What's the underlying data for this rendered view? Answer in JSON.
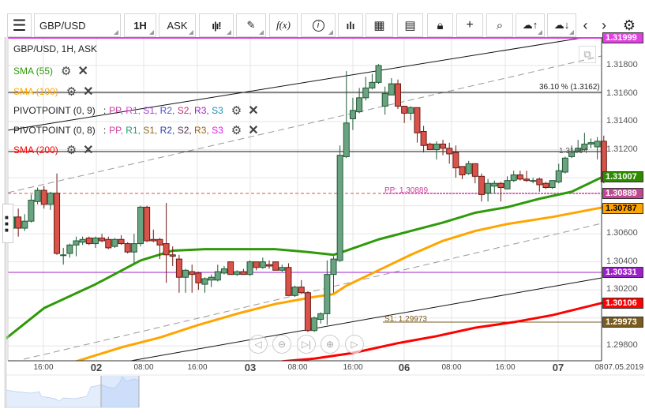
{
  "toolbar": {
    "menu_icon": "hamburger-icon",
    "symbol": "GBP/USD",
    "timeframe": "1H",
    "price_type": "ASK",
    "icons": [
      "candlestick-icon",
      "pen-icon",
      "function-icon",
      "info-icon",
      "bar-chart-icon",
      "calendar-icon",
      "document-icon",
      "lock-icon",
      "crosshair-icon",
      "zoom-search-icon",
      "cloud-upload-icon",
      "cloud-download-icon",
      "chevron-left-icon",
      "chevron-right-icon",
      "gear-icon"
    ],
    "fx_label": "f(x)"
  },
  "legend": {
    "title": "GBP/USD, 1H, ASK",
    "sma55": {
      "label": "SMA (55)",
      "color": "#2e9a0a"
    },
    "sma100": {
      "label": "SMA (100)",
      "color": "#ffa500"
    },
    "sma200": {
      "label": "SMA (200)",
      "color": "#ff0000"
    },
    "pivot1": {
      "label": "PIVOTPOINT (0, 9)",
      "sep": ":",
      "parts": [
        {
          "t": "PP",
          "c": "#c0399a"
        },
        {
          "t": "R1",
          "c": "#e040e0"
        },
        {
          "t": "S1",
          "c": "#a040d0"
        },
        {
          "t": "R2",
          "c": "#5050d0"
        },
        {
          "t": "S2",
          "c": "#c03070"
        },
        {
          "t": "R3",
          "c": "#a020c0"
        },
        {
          "t": "S3",
          "c": "#2090b0"
        }
      ]
    },
    "pivot2": {
      "label": "PIVOTPOINT (0, 8)",
      "sep": ":",
      "parts": [
        {
          "t": "PP",
          "c": "#d040a0"
        },
        {
          "t": "R1",
          "c": "#20a070"
        },
        {
          "t": "S1",
          "c": "#8a6a20"
        },
        {
          "t": "R2",
          "c": "#3040b0"
        },
        {
          "t": "S2",
          "c": "#503050"
        },
        {
          "t": "R3",
          "c": "#a06010"
        },
        {
          "t": "S3",
          "c": "#e020e0"
        }
      ]
    }
  },
  "annotations": {
    "fib": "36.10 % (1.3162)",
    "hline": "1.31094",
    "pp": "PP: 1.30889",
    "s1": "S1: 1.29973"
  },
  "price_labels": [
    {
      "value": "1.31999",
      "color": "#e040e0"
    },
    {
      "value": "1.31007",
      "color": "#2e8b00"
    },
    {
      "value": "1.30889",
      "color": "#c04890"
    },
    {
      "value": "1.30787",
      "color": "#ffa500"
    },
    {
      "value": "1.30331",
      "color": "#9b20c8"
    },
    {
      "value": "1.30106",
      "color": "#ff0000"
    },
    {
      "value": "1.29973",
      "color": "#7a5c20"
    }
  ],
  "nav_buttons": [
    "scroll-left-icon",
    "zoom-out-icon",
    "go-to-end-icon",
    "zoom-in-icon",
    "scroll-right-icon"
  ],
  "chart_data": {
    "type": "candlestick",
    "y_ticks": [
      "1.31800",
      "1.31600",
      "1.31400",
      "1.31200",
      "1.30600",
      "1.30400",
      "1.30200",
      "1.29800"
    ],
    "x_ticks": [
      {
        "t": "16:00",
        "day": false
      },
      {
        "t": "02",
        "day": true
      },
      {
        "t": "08:00",
        "day": false
      },
      {
        "t": "16:00",
        "day": false
      },
      {
        "t": "03",
        "day": true
      },
      {
        "t": "08:00",
        "day": false
      },
      {
        "t": "16:00",
        "day": false
      },
      {
        "t": "06",
        "day": true
      },
      {
        "t": "08:00",
        "day": false
      },
      {
        "t": "16:00",
        "day": false
      },
      {
        "t": "07",
        "day": true
      }
    ],
    "x_last": "08",
    "date": "07.05.2019",
    "ylim": [
      1.2972,
      1.3192
    ],
    "colors": {
      "up": "#6aa37f",
      "down": "#d9534a"
    },
    "ohlc": [
      [
        1.3064,
        1.3074,
        1.3063,
        1.3072
      ],
      [
        1.3072,
        1.3078,
        1.3058,
        1.3064
      ],
      [
        1.3064,
        1.3074,
        1.3062,
        1.3069
      ],
      [
        1.3069,
        1.3088,
        1.3068,
        1.3084
      ],
      [
        1.3083,
        1.3093,
        1.3081,
        1.3091
      ],
      [
        1.3091,
        1.3094,
        1.3078,
        1.3081
      ],
      [
        1.3081,
        1.309,
        1.3077,
        1.3089
      ],
      [
        1.3089,
        1.3103,
        1.3045,
        1.3046
      ],
      [
        1.3045,
        1.305,
        1.3038,
        1.3045
      ],
      [
        1.3046,
        1.3053,
        1.3043,
        1.3052
      ],
      [
        1.3052,
        1.3058,
        1.3044,
        1.3055
      ],
      [
        1.3054,
        1.3058,
        1.3052,
        1.3056
      ],
      [
        1.3057,
        1.3058,
        1.3052,
        1.3053
      ],
      [
        1.3053,
        1.3058,
        1.305,
        1.3057
      ],
      [
        1.3057,
        1.306,
        1.3054,
        1.3055
      ],
      [
        1.3056,
        1.3058,
        1.3049,
        1.305
      ],
      [
        1.3051,
        1.3057,
        1.305,
        1.3056
      ],
      [
        1.3056,
        1.3059,
        1.3052,
        1.3053
      ],
      [
        1.3053,
        1.3054,
        1.3046,
        1.3047
      ],
      [
        1.3047,
        1.306,
        1.3039,
        1.3053
      ],
      [
        1.3053,
        1.308,
        1.3051,
        1.3079
      ],
      [
        1.3079,
        1.308,
        1.3054,
        1.3055
      ],
      [
        1.3056,
        1.3063,
        1.3054,
        1.3055
      ],
      [
        1.3056,
        1.3057,
        1.3042,
        1.3052
      ],
      [
        1.3053,
        1.3082,
        1.3025,
        1.3045
      ],
      [
        1.3045,
        1.3051,
        1.3037,
        1.3044
      ],
      [
        1.3042,
        1.3045,
        1.3018,
        1.3029
      ],
      [
        1.3029,
        1.3035,
        1.3018,
        1.3034
      ],
      [
        1.3033,
        1.3038,
        1.3018,
        1.3031
      ],
      [
        1.3032,
        1.3033,
        1.302,
        1.3025
      ],
      [
        1.3024,
        1.3029,
        1.3018,
        1.3028
      ],
      [
        1.3027,
        1.3031,
        1.3022,
        1.3029
      ],
      [
        1.3027,
        1.3038,
        1.3026,
        1.3033
      ],
      [
        1.3032,
        1.3037,
        1.3031,
        1.3035
      ],
      [
        1.304,
        1.304,
        1.3031,
        1.3031
      ],
      [
        1.3031,
        1.3034,
        1.303,
        1.3033
      ],
      [
        1.3033,
        1.3035,
        1.3031,
        1.3031
      ],
      [
        1.3031,
        1.3041,
        1.303,
        1.304
      ],
      [
        1.304,
        1.304,
        1.3034,
        1.3036
      ],
      [
        1.3036,
        1.3043,
        1.3035,
        1.304
      ],
      [
        1.3038,
        1.3041,
        1.3035,
        1.3037
      ],
      [
        1.304,
        1.304,
        1.3034,
        1.3034
      ],
      [
        1.3034,
        1.3038,
        1.3033,
        1.3036
      ],
      [
        1.3036,
        1.3039,
        1.3016,
        1.3016
      ],
      [
        1.3016,
        1.3023,
        1.3015,
        1.3022
      ],
      [
        1.3022,
        1.3027,
        1.3017,
        1.3018
      ],
      [
        1.3018,
        1.3019,
        1.299,
        1.2991
      ],
      [
        1.2991,
        1.3001,
        1.299,
        1.3
      ],
      [
        1.2999,
        1.3004,
        1.2996,
        1.3003
      ],
      [
        1.3003,
        1.3041,
        1.2995,
        1.3031
      ],
      [
        1.3031,
        1.3044,
        1.3018,
        1.3042
      ],
      [
        1.3041,
        1.3123,
        1.304,
        1.3116
      ],
      [
        1.3115,
        1.3176,
        1.3114,
        1.3139
      ],
      [
        1.3142,
        1.3157,
        1.3134,
        1.3148
      ],
      [
        1.3147,
        1.3164,
        1.3146,
        1.3157
      ],
      [
        1.3157,
        1.3172,
        1.3155,
        1.3164
      ],
      [
        1.3164,
        1.3174,
        1.3163,
        1.3168
      ],
      [
        1.3168,
        1.3181,
        1.3167,
        1.318
      ],
      [
        1.3151,
        1.3165,
        1.3145,
        1.316
      ],
      [
        1.3159,
        1.3171,
        1.3159,
        1.3167
      ],
      [
        1.3167,
        1.317,
        1.3149,
        1.3151
      ],
      [
        1.3151,
        1.3151,
        1.3139,
        1.3146
      ],
      [
        1.3146,
        1.3151,
        1.3141,
        1.315
      ],
      [
        1.315,
        1.315,
        1.3125,
        1.3132
      ],
      [
        1.3133,
        1.3137,
        1.3118,
        1.3123
      ],
      [
        1.3124,
        1.3125,
        1.312,
        1.312
      ],
      [
        1.312,
        1.3126,
        1.3113,
        1.3124
      ],
      [
        1.3124,
        1.3127,
        1.3116,
        1.3121
      ],
      [
        1.3121,
        1.3125,
        1.311,
        1.3117
      ],
      [
        1.3118,
        1.3123,
        1.31,
        1.3107
      ],
      [
        1.3108,
        1.3108,
        1.3099,
        1.3102
      ],
      [
        1.3103,
        1.3112,
        1.3102,
        1.311
      ],
      [
        1.311,
        1.311,
        1.3096,
        1.3101
      ],
      [
        1.3101,
        1.3103,
        1.3083,
        1.3088
      ],
      [
        1.3089,
        1.3099,
        1.3083,
        1.3096
      ],
      [
        1.3094,
        1.3098,
        1.3089,
        1.3096
      ],
      [
        1.3096,
        1.3097,
        1.3083,
        1.3093
      ],
      [
        1.3092,
        1.3101,
        1.3092,
        1.3098
      ],
      [
        1.3098,
        1.3105,
        1.3097,
        1.3102
      ],
      [
        1.3102,
        1.3105,
        1.3098,
        1.3099
      ],
      [
        1.3099,
        1.3105,
        1.3097,
        1.3098
      ],
      [
        1.3098,
        1.31,
        1.3096,
        1.3098
      ],
      [
        1.3099,
        1.31,
        1.309,
        1.3095
      ],
      [
        1.3096,
        1.3097,
        1.3092,
        1.3093
      ],
      [
        1.3093,
        1.3098,
        1.3092,
        1.3098
      ],
      [
        1.3097,
        1.311,
        1.3096,
        1.3105
      ],
      [
        1.3104,
        1.3115,
        1.3103,
        1.3114
      ],
      [
        1.3115,
        1.3123,
        1.3114,
        1.3119
      ],
      [
        1.3119,
        1.3127,
        1.3118,
        1.3121
      ],
      [
        1.312,
        1.3132,
        1.3119,
        1.3124
      ],
      [
        1.3124,
        1.3128,
        1.3121,
        1.3125
      ],
      [
        1.3122,
        1.3129,
        1.3113,
        1.3126
      ],
      [
        1.3126,
        1.313,
        1.3096,
        1.3097
      ]
    ],
    "series": [
      {
        "name": "SMA (55)",
        "color": "#2e9a0a",
        "points": [
          [
            -1,
            1.2985
          ],
          [
            5,
            1.3007
          ],
          [
            13,
            1.3024
          ],
          [
            20,
            1.3041
          ],
          [
            25,
            1.3048
          ],
          [
            30,
            1.3049
          ],
          [
            35,
            1.3049
          ],
          [
            41,
            1.3049
          ],
          [
            46,
            1.3047
          ],
          [
            50,
            1.3045
          ],
          [
            52,
            1.3048
          ],
          [
            57,
            1.3056
          ],
          [
            62,
            1.3062
          ],
          [
            67,
            1.3068
          ],
          [
            72,
            1.3075
          ],
          [
            77,
            1.3079
          ],
          [
            82,
            1.3085
          ],
          [
            87,
            1.309
          ],
          [
            92,
            1.3101
          ]
        ]
      },
      {
        "name": "SMA (100)",
        "color": "#ffa500",
        "points": [
          [
            10,
            1.2969
          ],
          [
            17,
            1.2979
          ],
          [
            23,
            1.2986
          ],
          [
            29,
            1.2995
          ],
          [
            35,
            1.3003
          ],
          [
            41,
            1.301
          ],
          [
            47,
            1.3015
          ],
          [
            50,
            1.3017
          ],
          [
            52,
            1.3023
          ],
          [
            57,
            1.3034
          ],
          [
            62,
            1.3045
          ],
          [
            67,
            1.3055
          ],
          [
            72,
            1.3062
          ],
          [
            77,
            1.3067
          ],
          [
            84,
            1.3072
          ],
          [
            92,
            1.3079
          ]
        ]
      },
      {
        "name": "SMA (200)",
        "color": "#ff0000",
        "points": [
          [
            42,
            1.2969
          ],
          [
            47,
            1.2971
          ],
          [
            53,
            1.2975
          ],
          [
            60,
            1.2982
          ],
          [
            66,
            1.2987
          ],
          [
            72,
            1.2993
          ],
          [
            78,
            1.2997
          ],
          [
            84,
            1.3002
          ],
          [
            92,
            1.3011
          ]
        ]
      }
    ]
  }
}
